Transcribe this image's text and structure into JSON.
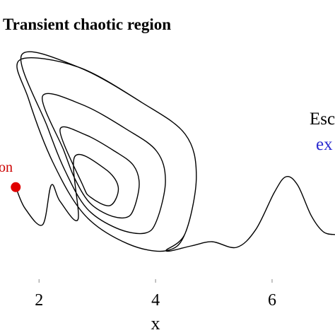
{
  "chart_data": {
    "type": "line",
    "title": "Transient chaotic region",
    "xlabel": "x",
    "xlim": [
      1.33,
      7.08
    ],
    "ylim": [
      0,
      10
    ],
    "xticks": [
      2,
      4,
      6
    ],
    "color": "#000000",
    "annotations": [
      {
        "text": "Esc",
        "color": "#000000"
      },
      {
        "text": "ex",
        "color": "#2a2ad0"
      },
      {
        "text": "on",
        "color": "#cc0000"
      }
    ],
    "marker": {
      "x": [
        1.6
      ],
      "values": [
        3.38
      ],
      "color": "#e00000"
    },
    "x": [
      1.6,
      1.76,
      2.06,
      2.21,
      2.36,
      2.67,
      2.61,
      3.13,
      3.36,
      3.22,
      2.88,
      2.74,
      2.36,
      2.8,
      3.3,
      3.62,
      3.72,
      3.62,
      3.48,
      3.19,
      2.86,
      2.61,
      2.42,
      2.06,
      2.74,
      3.5,
      4.02,
      4.17,
      4.02,
      3.81,
      3.33,
      2.82,
      2.45,
      2.14,
      1.7,
      2.67,
      3.76,
      4.51,
      4.7,
      4.51,
      4.18,
      3.52,
      2.79,
      2.24,
      1.82,
      1.67,
      2.67,
      3.76,
      4.51,
      4.7,
      4.51,
      4.18,
      4.61,
      4.97,
      5.39,
      5.72,
      6.04,
      6.24,
      6.44,
      6.67,
      6.88,
      7.08
    ],
    "values": [
      3.38,
      2.63,
      2.05,
      3.45,
      2.88,
      2.25,
      4.45,
      4.03,
      3.38,
      2.73,
      3.03,
      3.5,
      5.4,
      5.23,
      4.65,
      4.15,
      3.48,
      2.58,
      2.3,
      2.4,
      2.85,
      3.7,
      4.7,
      6.6,
      6.3,
      5.43,
      4.65,
      3.6,
      2.2,
      1.75,
      1.93,
      2.63,
      3.95,
      5.53,
      8.05,
      7.63,
      6.38,
      5.25,
      3.75,
      1.75,
      1.13,
      1.38,
      2.38,
      4.25,
      6.5,
      7.88,
      7.63,
      6.38,
      5.25,
      3.75,
      1.75,
      1.13,
      1.3,
      1.45,
      1.25,
      1.88,
      3.2,
      3.75,
      3.45,
      2.38,
      1.8,
      1.7
    ]
  }
}
